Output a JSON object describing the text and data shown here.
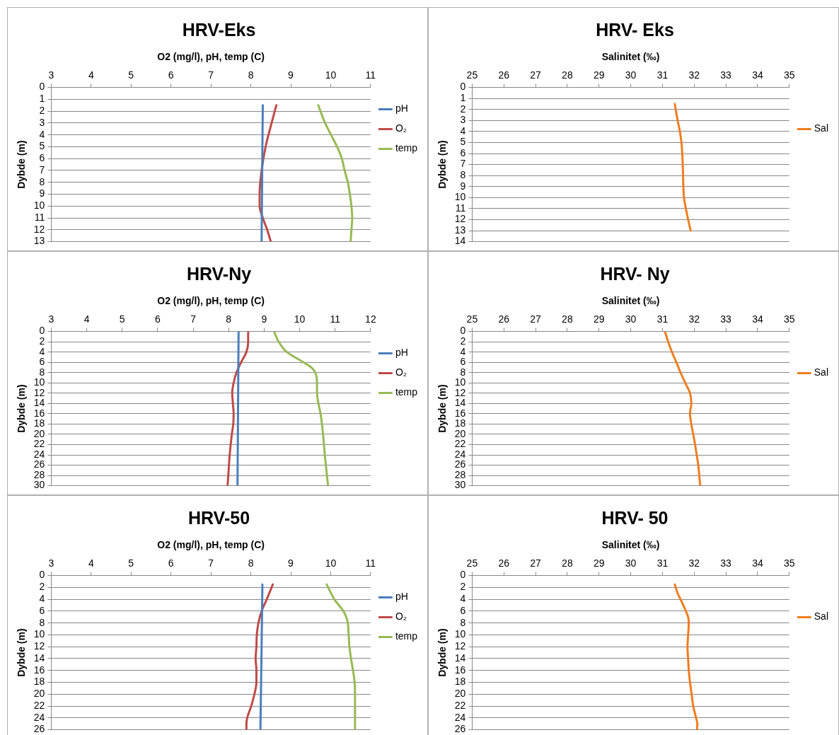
{
  "chart_data": [
    {
      "type": "line",
      "title": "HRV-Eks",
      "xlabel": "O2 (mg/l), pH, temp (C)",
      "ylabel": "Dybde (m)",
      "xlim": [
        3,
        11
      ],
      "xticks": [
        3,
        4,
        5,
        6,
        7,
        8,
        9,
        10,
        11
      ],
      "ylim": [
        13,
        0
      ],
      "yticks": [
        0,
        1,
        2,
        3,
        4,
        5,
        6,
        7,
        8,
        9,
        10,
        11,
        12,
        13
      ],
      "grid": "y",
      "legend": "right",
      "marker": "none",
      "series": [
        {
          "name": "pH",
          "color": "#4a7ebb",
          "x": [
            8.3,
            8.29,
            8.28,
            8.27
          ],
          "values": [
            1.5,
            5,
            9,
            13
          ]
        },
        {
          "name": "O₂",
          "color": "#be4b48",
          "x": [
            8.64,
            8.52,
            8.37,
            8.27,
            8.22,
            8.22,
            8.3,
            8.41,
            8.5
          ],
          "values": [
            1.5,
            3,
            5,
            7,
            9,
            10,
            11,
            12,
            13
          ]
        },
        {
          "name": "temp",
          "color": "#98b954",
          "x": [
            9.69,
            9.86,
            10.01,
            10.16,
            10.28,
            10.35,
            10.43,
            10.48,
            10.52,
            10.54,
            10.52,
            10.5
          ],
          "values": [
            1.5,
            3,
            4,
            5,
            6,
            7,
            8,
            9,
            10,
            11,
            12,
            13
          ]
        }
      ]
    },
    {
      "type": "line",
      "title": "HRV- Eks",
      "xlabel": "Salinitet (‰)",
      "ylabel": "Dybde (m)",
      "xlim": [
        25,
        35
      ],
      "xticks": [
        25,
        26,
        27,
        28,
        29,
        30,
        31,
        32,
        33,
        34,
        35
      ],
      "ylim": [
        14,
        0
      ],
      "yticks": [
        0,
        1,
        2,
        3,
        4,
        5,
        6,
        7,
        8,
        9,
        10,
        11,
        12,
        13,
        14
      ],
      "grid": "y",
      "legend": "right",
      "marker": "none",
      "series": [
        {
          "name": "Sal",
          "color": "#ef7d1f",
          "x": [
            31.39,
            31.48,
            31.55,
            31.6,
            31.64,
            31.66,
            31.68,
            31.74,
            31.81,
            31.89
          ],
          "values": [
            1.5,
            3,
            4,
            5,
            7,
            9,
            10,
            11,
            12,
            13
          ]
        }
      ]
    },
    {
      "type": "line",
      "title": "HRV-Ny",
      "xlabel": "O2 (mg/l), pH, temp (C)",
      "ylabel": "Dybde (m)",
      "xlim": [
        3,
        12
      ],
      "xticks": [
        3,
        4,
        5,
        6,
        7,
        8,
        9,
        10,
        11,
        12
      ],
      "ylim": [
        30,
        0
      ],
      "yticks": [
        0,
        2,
        4,
        6,
        8,
        10,
        12,
        14,
        16,
        18,
        20,
        22,
        24,
        26,
        28,
        30
      ],
      "grid": "y",
      "legend": "right",
      "marker": "none",
      "series": [
        {
          "name": "pH",
          "color": "#4a7ebb",
          "x": [
            8.28,
            8.27,
            8.25
          ],
          "values": [
            0,
            10,
            30
          ]
        },
        {
          "name": "O₂",
          "color": "#be4b48",
          "x": [
            8.55,
            8.55,
            8.5,
            8.35,
            8.22,
            8.14,
            8.1,
            8.12,
            8.14,
            8.13,
            8.09,
            8.03,
            7.99,
            7.97
          ],
          "values": [
            0,
            2,
            4,
            6,
            8,
            10,
            12,
            14,
            16,
            18,
            20,
            24,
            28,
            30
          ]
        },
        {
          "name": "temp",
          "color": "#98b954",
          "x": [
            9.28,
            9.41,
            9.64,
            10.11,
            10.33,
            10.44,
            10.49,
            10.49,
            10.53,
            10.59,
            10.66,
            10.71,
            10.77,
            10.8
          ],
          "values": [
            0,
            2,
            4,
            6,
            7,
            8,
            10,
            12,
            14,
            16,
            20,
            24,
            28,
            30
          ]
        }
      ]
    },
    {
      "type": "line",
      "title": "HRV- Ny",
      "xlabel": "Salinitet (‰)",
      "ylabel": "Dybde (m)",
      "xlim": [
        25,
        35
      ],
      "xticks": [
        25,
        26,
        27,
        28,
        29,
        30,
        31,
        32,
        33,
        34,
        35
      ],
      "ylim": [
        30,
        0
      ],
      "yticks": [
        0,
        2,
        4,
        6,
        8,
        10,
        12,
        14,
        16,
        18,
        20,
        22,
        24,
        26,
        28,
        30
      ],
      "grid": "y",
      "legend": "right",
      "marker": "none",
      "series": [
        {
          "name": "Sal",
          "color": "#ef7d1f",
          "x": [
            31.08,
            31.18,
            31.3,
            31.44,
            31.57,
            31.72,
            31.87,
            31.91,
            31.87,
            31.91,
            31.97,
            32.03,
            32.08,
            32.13,
            32.16,
            32.19
          ],
          "values": [
            0,
            2,
            4,
            6,
            8,
            10,
            12,
            14,
            16,
            18,
            20,
            22,
            24,
            26,
            28,
            30
          ]
        }
      ]
    },
    {
      "type": "line",
      "title": "HRV-50",
      "xlabel": "O2 (mg/l), pH, temp (C)",
      "ylabel": "Dybde (m)",
      "xlim": [
        3,
        11
      ],
      "xticks": [
        3,
        4,
        5,
        6,
        7,
        8,
        9,
        10,
        11
      ],
      "ylim": [
        26,
        0
      ],
      "yticks": [
        0,
        2,
        4,
        6,
        8,
        10,
        12,
        14,
        16,
        18,
        20,
        22,
        24,
        26
      ],
      "grid": "y",
      "legend": "right",
      "marker": "none",
      "series": [
        {
          "name": "pH",
          "color": "#4a7ebb",
          "x": [
            8.29,
            8.27,
            8.24
          ],
          "values": [
            1.5,
            12,
            26
          ]
        },
        {
          "name": "O₂",
          "color": "#be4b48",
          "x": [
            8.55,
            8.4,
            8.27,
            8.19,
            8.15,
            8.14,
            8.12,
            8.14,
            8.14,
            8.09,
            8.01,
            7.91,
            7.89,
            7.89
          ],
          "values": [
            1.5,
            4,
            6,
            8,
            10,
            12,
            14,
            16,
            18,
            20,
            22,
            24,
            25,
            26
          ]
        },
        {
          "name": "temp",
          "color": "#98b954",
          "x": [
            9.9,
            10.01,
            10.09,
            10.32,
            10.39,
            10.43,
            10.45,
            10.47,
            10.51,
            10.56,
            10.6,
            10.61,
            10.61
          ],
          "values": [
            1.5,
            3,
            4,
            6,
            7,
            8,
            10,
            12,
            14,
            16,
            18,
            20,
            26
          ]
        }
      ]
    },
    {
      "type": "line",
      "title": "HRV- 50",
      "xlabel": "Salinitet (‰)",
      "ylabel": "Dybde (m)",
      "xlim": [
        25,
        35
      ],
      "xticks": [
        25,
        26,
        27,
        28,
        29,
        30,
        31,
        32,
        33,
        34,
        35
      ],
      "ylim": [
        26,
        0
      ],
      "yticks": [
        0,
        2,
        4,
        6,
        8,
        10,
        12,
        14,
        16,
        18,
        20,
        22,
        24,
        26
      ],
      "grid": "y",
      "legend": "right",
      "marker": "none",
      "series": [
        {
          "name": "Sal",
          "color": "#ef7d1f",
          "x": [
            31.39,
            31.48,
            31.57,
            31.74,
            31.81,
            31.83,
            31.81,
            31.79,
            31.81,
            31.83,
            31.87,
            31.92,
            31.97,
            32.06,
            32.1,
            32.09
          ],
          "values": [
            1.5,
            3,
            4,
            6,
            7,
            8,
            10,
            12,
            14,
            16,
            18,
            20,
            22,
            24,
            25,
            26
          ]
        }
      ]
    }
  ]
}
